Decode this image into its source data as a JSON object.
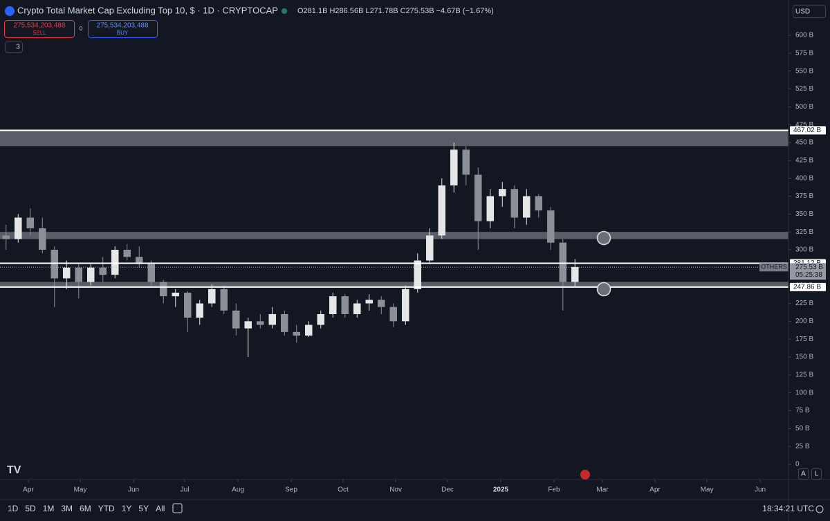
{
  "header": {
    "title": "Crypto Total Market Cap Excluding Top 10, $ · 1D · CRYPTOCAP",
    "ohlc": "O281.1B H286.56B L271.78B C275.53B −4.67B (−1.67%)",
    "sell_price": "275,534,203,488",
    "sell": "SELL",
    "spread": "0",
    "buy_price": "275,534,203,488",
    "buy": "BUY",
    "indicators": "3",
    "currency": "USD"
  },
  "chart_data": {
    "type": "candlestick",
    "categories": [
      null,
      null,
      null,
      null,
      null,
      null,
      null,
      null,
      null,
      null,
      null,
      null,
      null,
      null,
      null,
      null,
      null,
      null,
      null,
      null,
      null,
      null,
      null,
      null,
      null,
      null,
      null,
      null,
      null,
      null,
      null,
      null,
      null,
      null,
      null,
      null,
      null,
      null,
      null,
      null,
      null,
      null,
      null,
      null,
      null,
      null,
      null,
      null
    ],
    "open": [
      320,
      315,
      345,
      330,
      300,
      260,
      275,
      255,
      275,
      265,
      300,
      290,
      280,
      255,
      235,
      240,
      205,
      225,
      245,
      215,
      190,
      200,
      195,
      210,
      185,
      180,
      195,
      210,
      235,
      210,
      225,
      230,
      220,
      200,
      245,
      285,
      320,
      390,
      440,
      405,
      340,
      375,
      385,
      345,
      375,
      355,
      310,
      255
    ],
    "high": [
      335,
      350,
      358,
      345,
      305,
      285,
      280,
      280,
      290,
      305,
      308,
      305,
      285,
      258,
      245,
      242,
      230,
      252,
      250,
      225,
      205,
      210,
      220,
      215,
      195,
      200,
      215,
      240,
      238,
      230,
      238,
      235,
      225,
      250,
      295,
      330,
      400,
      450,
      445,
      415,
      385,
      395,
      390,
      385,
      378,
      360,
      315,
      287
    ],
    "low": [
      300,
      310,
      320,
      295,
      220,
      245,
      232,
      250,
      255,
      260,
      285,
      275,
      250,
      225,
      220,
      185,
      195,
      220,
      210,
      180,
      150,
      190,
      190,
      180,
      170,
      178,
      190,
      205,
      205,
      205,
      215,
      210,
      192,
      195,
      240,
      280,
      315,
      380,
      390,
      300,
      330,
      360,
      330,
      335,
      345,
      300,
      215,
      248
    ],
    "close": [
      315,
      345,
      330,
      300,
      260,
      275,
      255,
      275,
      265,
      300,
      290,
      280,
      255,
      235,
      240,
      205,
      225,
      245,
      215,
      190,
      200,
      195,
      210,
      185,
      180,
      195,
      210,
      235,
      210,
      225,
      230,
      220,
      200,
      245,
      285,
      320,
      390,
      440,
      405,
      340,
      375,
      385,
      345,
      375,
      355,
      310,
      255,
      276
    ],
    "up_color": "#e6e6e6",
    "down_color": "#8c8f96",
    "xlim": [
      -0.5,
      64.64
    ],
    "xticks": [
      {
        "value": 1.84,
        "label": "Apr"
      },
      {
        "value": 6.13,
        "label": "May"
      },
      {
        "value": 10.53,
        "label": "Jun"
      },
      {
        "value": 14.76,
        "label": "Jul"
      },
      {
        "value": 19.16,
        "label": "Aug"
      },
      {
        "value": 23.56,
        "label": "Sep"
      },
      {
        "value": 27.84,
        "label": "Oct"
      },
      {
        "value": 32.19,
        "label": "Nov"
      },
      {
        "value": 36.47,
        "label": "Dec"
      },
      {
        "value": 40.87,
        "label": "2025"
      },
      {
        "value": 45.27,
        "label": "Feb"
      },
      {
        "value": 49.27,
        "label": "Mar"
      },
      {
        "value": 53.61,
        "label": "Apr"
      },
      {
        "value": 57.9,
        "label": "May"
      },
      {
        "value": 62.3,
        "label": "Jun"
      }
    ],
    "ylim": [
      0,
      649.4
    ],
    "yticks": [
      0,
      {
        "value": 25,
        "label": "25 B"
      },
      {
        "value": 50,
        "label": "50 B"
      },
      {
        "value": 75,
        "label": "75 B"
      },
      {
        "value": 100,
        "label": "100 B"
      },
      {
        "value": 125,
        "label": "125 B"
      },
      {
        "value": 150,
        "label": "150 B"
      },
      {
        "value": 175,
        "label": "175 B"
      },
      {
        "value": 200,
        "label": "200 B"
      },
      {
        "value": 225,
        "label": "225 B"
      },
      {
        "value": 250,
        "label": "250 B"
      },
      {
        "value": 275,
        "label": "275 B"
      },
      {
        "value": 300,
        "label": "300 B"
      },
      {
        "value": 325,
        "label": "325 B"
      },
      {
        "value": 350,
        "label": "350 B"
      },
      {
        "value": 375,
        "label": "375 B"
      },
      {
        "value": 400,
        "label": "400 B"
      },
      {
        "value": 425,
        "label": "425 B"
      },
      {
        "value": 450,
        "label": "450 B"
      },
      {
        "value": 475,
        "label": "475 B"
      },
      {
        "value": 500,
        "label": "500 B"
      },
      {
        "value": 525,
        "label": "525 B"
      },
      {
        "value": 550,
        "label": "550 B"
      },
      {
        "value": 575,
        "label": "575 B"
      },
      {
        "value": 600,
        "label": "600 B"
      }
    ],
    "zones": [
      [
        445,
        467.02
      ],
      [
        315,
        325
      ],
      [
        247.86,
        255
      ]
    ],
    "levels": [
      {
        "value": 467.02,
        "label": "467.02 B"
      },
      {
        "value": 281.12,
        "label": "281.12 B"
      },
      {
        "value": 247.86,
        "label": "247.86 B"
      }
    ],
    "last_price": {
      "value": 275.53,
      "label": "275.53 B"
    },
    "symbol": "OTHERS",
    "countdown": "05:25:38"
  },
  "footer": {
    "timeframes": [
      "1D",
      "5D",
      "1M",
      "3M",
      "6M",
      "YTD",
      "1Y",
      "5Y",
      "All"
    ],
    "clock": "18:34:21 UTC",
    "auto": "A",
    "log": "L"
  }
}
